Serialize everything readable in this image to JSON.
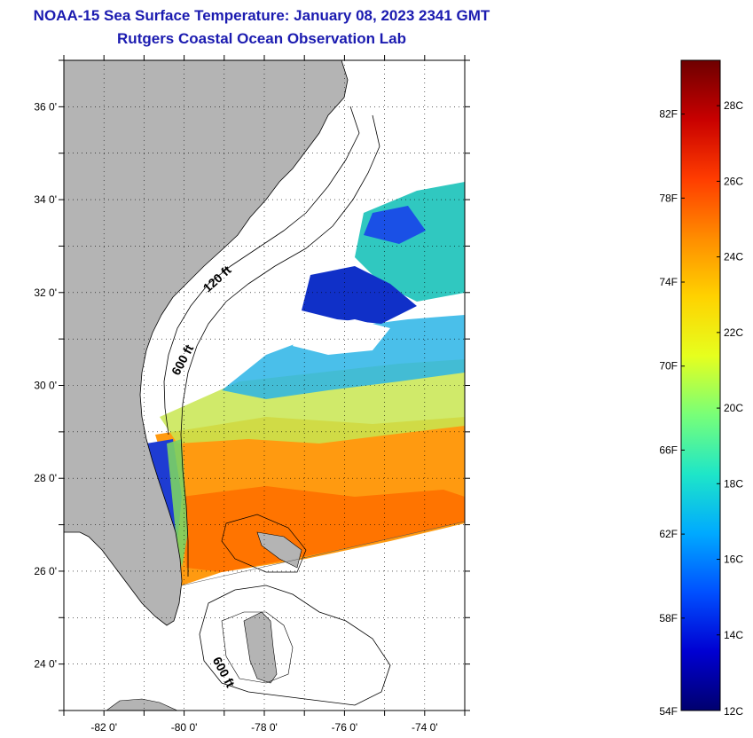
{
  "header": {
    "title": "NOAA-15 Sea Surface Temperature:  January 08, 2023 2341 GMT",
    "subtitle": "Rutgers Coastal Ocean Observation Lab"
  },
  "map": {
    "lat_range": [
      23,
      37
    ],
    "lon_range": [
      -83,
      -73
    ],
    "lat_labels": [
      "36 0'",
      "34 0'",
      "32 0'",
      "30 0'",
      "28 0'",
      "26 0'",
      "24 0'"
    ],
    "lon_labels": [
      "-82 0'",
      "-80 0'",
      "-78 0'",
      "-76 0'",
      "-74 0'"
    ],
    "contour_labels": [
      "120 ft",
      "600 ft",
      "600 ft"
    ],
    "land_color": "#b4b4b4",
    "ocean_color": "#ffffff"
  },
  "colorbar": {
    "f_labels": [
      "82F",
      "78F",
      "74F",
      "70F",
      "66F",
      "62F",
      "58F",
      "54F"
    ],
    "c_labels": [
      "28C",
      "26C",
      "24C",
      "22C",
      "20C",
      "18C",
      "16C",
      "14C",
      "12C"
    ],
    "colors": [
      "#6e0000",
      "#c80000",
      "#ff3c00",
      "#ff8c00",
      "#ffd200",
      "#e6ff1e",
      "#78ff78",
      "#1ee6c8",
      "#00aaff",
      "#0050ff",
      "#0000d2",
      "#00006e"
    ]
  }
}
